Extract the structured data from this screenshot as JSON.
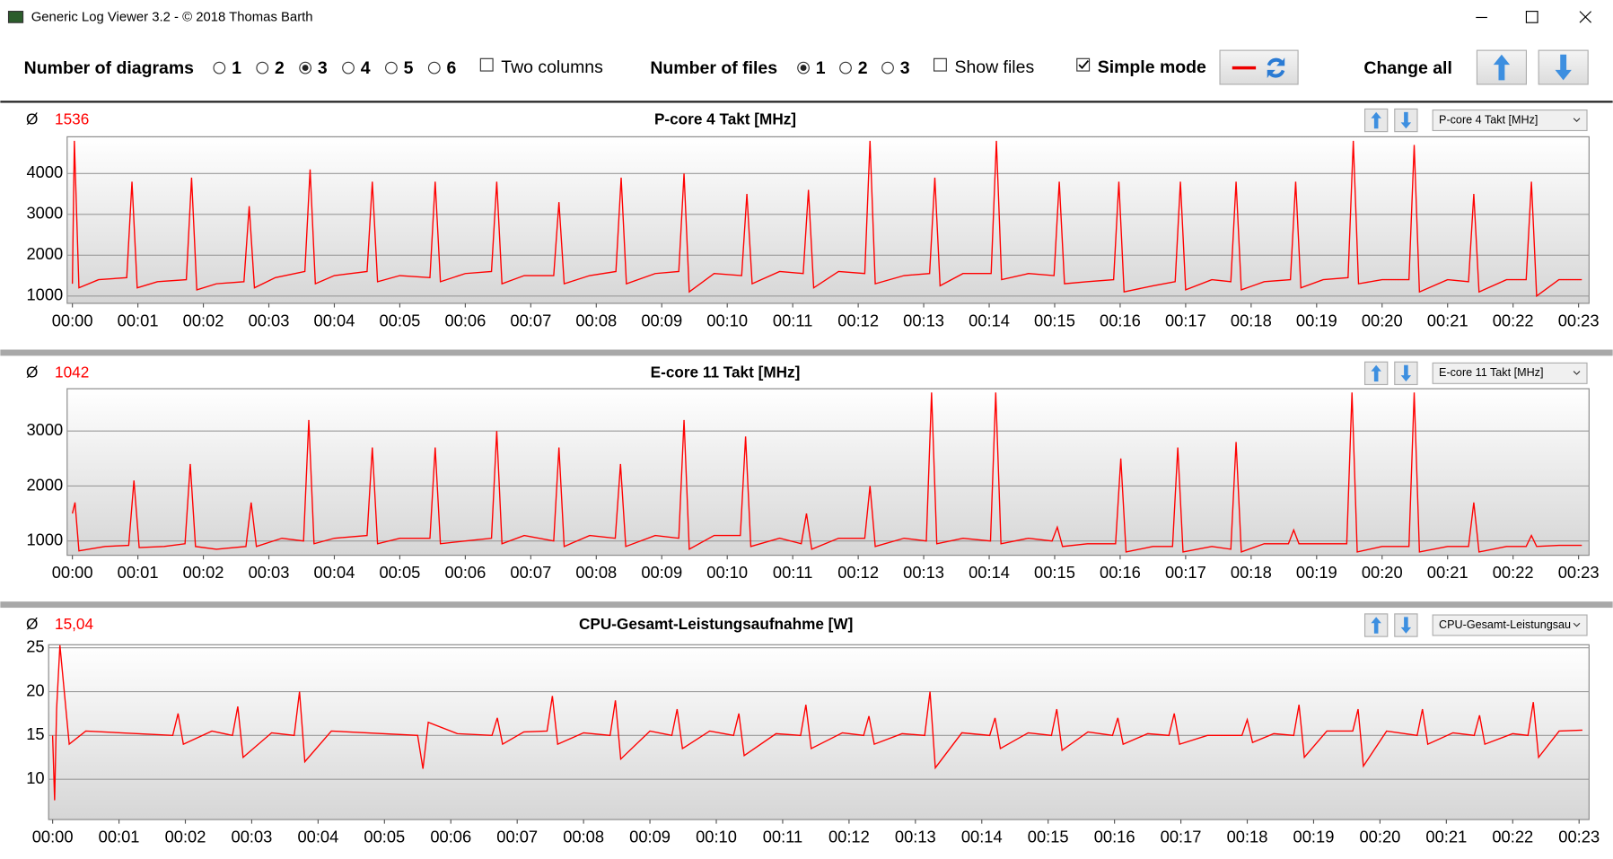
{
  "window": {
    "title": "Generic Log Viewer 3.2 - © 2018 Thomas Barth"
  },
  "toolbar": {
    "diagrams_label": "Number of diagrams",
    "diagram_options": [
      "1",
      "2",
      "3",
      "4",
      "5",
      "6"
    ],
    "diagrams_selected": 2,
    "two_columns": "Two columns",
    "two_columns_checked": false,
    "files_label": "Number of files",
    "file_options": [
      "1",
      "2",
      "3"
    ],
    "files_selected": 0,
    "show_files": "Show files",
    "show_files_checked": false,
    "simple_mode": "Simple mode",
    "simple_mode_checked": true,
    "change_all": "Change all"
  },
  "chart_data": [
    {
      "type": "line",
      "title": "P-core 4 Takt [MHz]",
      "average_symbol": "Ø",
      "average": 1536,
      "selector": "P-core 4 Takt [MHz]",
      "color": "#ff0000",
      "grid": true,
      "x": [
        0,
        0.03,
        0.1,
        0.4,
        0.83,
        0.91,
        0.99,
        1.3,
        1.74,
        1.82,
        1.9,
        2.2,
        2.62,
        2.7,
        2.78,
        3.1,
        3.55,
        3.63,
        3.71,
        4.0,
        4.5,
        4.58,
        4.66,
        5.0,
        5.46,
        5.54,
        5.62,
        6.0,
        6.4,
        6.48,
        6.56,
        6.9,
        7.35,
        7.43,
        7.51,
        7.9,
        8.3,
        8.38,
        8.46,
        8.9,
        9.26,
        9.34,
        9.42,
        9.8,
        10.22,
        10.3,
        10.38,
        10.8,
        11.16,
        11.24,
        11.32,
        11.7,
        12.1,
        12.18,
        12.26,
        12.7,
        13.09,
        13.17,
        13.25,
        13.6,
        14.03,
        14.11,
        14.19,
        14.6,
        14.99,
        15.07,
        15.15,
        15.5,
        15.9,
        15.98,
        16.06,
        16.5,
        16.84,
        16.92,
        17.0,
        17.4,
        17.69,
        17.77,
        17.85,
        18.2,
        18.6,
        18.68,
        18.76,
        19.1,
        19.48,
        19.56,
        19.64,
        20.0,
        20.41,
        20.49,
        20.57,
        21.0,
        21.32,
        21.4,
        21.48,
        21.9,
        22.2,
        22.28,
        22.36,
        22.7,
        23.05
      ],
      "values": [
        1300,
        4800,
        1200,
        1400,
        1450,
        3800,
        1200,
        1350,
        1400,
        3900,
        1150,
        1300,
        1350,
        3200,
        1200,
        1450,
        1600,
        4100,
        1300,
        1500,
        1600,
        3800,
        1350,
        1500,
        1450,
        3800,
        1350,
        1550,
        1600,
        3800,
        1300,
        1500,
        1500,
        3300,
        1300,
        1500,
        1600,
        3900,
        1300,
        1550,
        1600,
        4000,
        1100,
        1550,
        1500,
        3500,
        1300,
        1600,
        1550,
        3600,
        1200,
        1600,
        1550,
        4800,
        1300,
        1500,
        1550,
        3900,
        1250,
        1550,
        1550,
        4800,
        1400,
        1550,
        1500,
        3800,
        1300,
        1350,
        1400,
        3800,
        1100,
        1250,
        1350,
        3800,
        1150,
        1400,
        1350,
        3800,
        1150,
        1350,
        1400,
        3800,
        1200,
        1400,
        1450,
        4800,
        1300,
        1400,
        1400,
        4700,
        1100,
        1400,
        1350,
        3500,
        1100,
        1400,
        1400,
        3800,
        1000,
        1400,
        1400
      ],
      "xlim": [
        -0.08,
        23.16
      ],
      "ylim": [
        820,
        4900
      ],
      "yticks": [
        1000,
        2000,
        3000,
        4000
      ],
      "xticks": [
        {
          "value": 0,
          "label": "00:00"
        },
        {
          "value": 1,
          "label": "00:01"
        },
        {
          "value": 2,
          "label": "00:02"
        },
        {
          "value": 3,
          "label": "00:03"
        },
        {
          "value": 4,
          "label": "00:04"
        },
        {
          "value": 5,
          "label": "00:05"
        },
        {
          "value": 6,
          "label": "00:06"
        },
        {
          "value": 7,
          "label": "00:07"
        },
        {
          "value": 8,
          "label": "00:08"
        },
        {
          "value": 9,
          "label": "00:09"
        },
        {
          "value": 10,
          "label": "00:10"
        },
        {
          "value": 11,
          "label": "00:11"
        },
        {
          "value": 12,
          "label": "00:12"
        },
        {
          "value": 13,
          "label": "00:13"
        },
        {
          "value": 14,
          "label": "00:14"
        },
        {
          "value": 15,
          "label": "00:15"
        },
        {
          "value": 16,
          "label": "00:16"
        },
        {
          "value": 17,
          "label": "00:17"
        },
        {
          "value": 18,
          "label": "00:18"
        },
        {
          "value": 19,
          "label": "00:19"
        },
        {
          "value": 20,
          "label": "00:20"
        },
        {
          "value": 21,
          "label": "00:21"
        },
        {
          "value": 22,
          "label": "00:22"
        },
        {
          "value": 23,
          "label": "00:23"
        }
      ]
    },
    {
      "type": "line",
      "title": "E-core 11 Takt [MHz]",
      "average_symbol": "Ø",
      "average": 1042,
      "selector": "E-core 11 Takt [MHz]",
      "color": "#ff0000",
      "grid": true,
      "x": [
        0,
        0.04,
        0.1,
        0.5,
        0.86,
        0.94,
        1.02,
        1.4,
        1.72,
        1.8,
        1.88,
        2.2,
        2.65,
        2.73,
        2.81,
        3.2,
        3.53,
        3.61,
        3.69,
        4.0,
        4.5,
        4.58,
        4.66,
        5.0,
        5.46,
        5.54,
        5.62,
        6.0,
        6.4,
        6.48,
        6.56,
        6.9,
        7.35,
        7.43,
        7.51,
        7.9,
        8.29,
        8.37,
        8.45,
        8.9,
        9.26,
        9.34,
        9.42,
        9.8,
        10.2,
        10.28,
        10.36,
        10.8,
        11.13,
        11.21,
        11.29,
        11.7,
        12.1,
        12.18,
        12.26,
        12.7,
        13.04,
        13.12,
        13.2,
        13.6,
        14.02,
        14.1,
        14.18,
        14.6,
        14.96,
        15.04,
        15.12,
        15.5,
        15.93,
        16.01,
        16.09,
        16.5,
        16.8,
        16.88,
        16.96,
        17.4,
        17.69,
        17.77,
        17.85,
        18.2,
        18.57,
        18.65,
        18.73,
        19.1,
        19.46,
        19.54,
        19.62,
        20.0,
        20.41,
        20.49,
        20.57,
        21.0,
        21.32,
        21.4,
        21.48,
        21.9,
        22.2,
        22.28,
        22.36,
        22.7,
        23.05
      ],
      "values": [
        1500,
        1700,
        820,
        900,
        920,
        2100,
        880,
        900,
        950,
        2400,
        900,
        850,
        900,
        1700,
        900,
        1050,
        1000,
        3200,
        950,
        1050,
        1100,
        2700,
        950,
        1050,
        1050,
        2700,
        950,
        1000,
        1050,
        3000,
        950,
        1100,
        1000,
        2700,
        900,
        1100,
        1050,
        2400,
        900,
        1100,
        1050,
        3200,
        850,
        1100,
        1100,
        2900,
        900,
        1050,
        950,
        1500,
        850,
        1050,
        1050,
        2000,
        900,
        1050,
        1000,
        3700,
        950,
        1050,
        1000,
        3700,
        950,
        1050,
        1000,
        1250,
        900,
        950,
        950,
        2500,
        800,
        900,
        900,
        2700,
        800,
        900,
        850,
        2800,
        800,
        950,
        950,
        1200,
        950,
        950,
        950,
        3700,
        800,
        900,
        900,
        3700,
        800,
        900,
        900,
        1700,
        800,
        900,
        900,
        1100,
        900,
        920,
        920
      ],
      "xlim": [
        -0.08,
        23.16
      ],
      "ylim": [
        740,
        3770
      ],
      "yticks": [
        1000,
        2000,
        3000
      ],
      "xticks": [
        {
          "value": 0,
          "label": "00:00"
        },
        {
          "value": 1,
          "label": "00:01"
        },
        {
          "value": 2,
          "label": "00:02"
        },
        {
          "value": 3,
          "label": "00:03"
        },
        {
          "value": 4,
          "label": "00:04"
        },
        {
          "value": 5,
          "label": "00:05"
        },
        {
          "value": 6,
          "label": "00:06"
        },
        {
          "value": 7,
          "label": "00:07"
        },
        {
          "value": 8,
          "label": "00:08"
        },
        {
          "value": 9,
          "label": "00:09"
        },
        {
          "value": 10,
          "label": "00:10"
        },
        {
          "value": 11,
          "label": "00:11"
        },
        {
          "value": 12,
          "label": "00:12"
        },
        {
          "value": 13,
          "label": "00:13"
        },
        {
          "value": 14,
          "label": "00:14"
        },
        {
          "value": 15,
          "label": "00:15"
        },
        {
          "value": 16,
          "label": "00:16"
        },
        {
          "value": 17,
          "label": "00:17"
        },
        {
          "value": 18,
          "label": "00:18"
        },
        {
          "value": 19,
          "label": "00:19"
        },
        {
          "value": 20,
          "label": "00:20"
        },
        {
          "value": 21,
          "label": "00:21"
        },
        {
          "value": 22,
          "label": "00:22"
        },
        {
          "value": 23,
          "label": "00:23"
        }
      ]
    },
    {
      "type": "line",
      "title": "CPU-Gesamt-Leistungsaufnahme [W]",
      "average_symbol": "Ø",
      "average": {
        "value": 15.04,
        "label": "15,04"
      },
      "selector": "CPU-Gesamt-Leistungsau",
      "color": "#ff0000",
      "grid": true,
      "x": [
        0,
        0.03,
        0.06,
        0.11,
        0.25,
        0.5,
        1.81,
        1.89,
        1.97,
        2.4,
        2.71,
        2.79,
        2.87,
        3.3,
        3.64,
        3.72,
        3.8,
        4.2,
        5.5,
        5.58,
        5.66,
        6.1,
        6.62,
        6.7,
        6.78,
        7.1,
        7.45,
        7.53,
        7.61,
        8.0,
        8.4,
        8.48,
        8.56,
        9.0,
        9.33,
        9.41,
        9.49,
        9.9,
        10.26,
        10.34,
        10.42,
        10.9,
        11.27,
        11.35,
        11.43,
        11.9,
        12.22,
        12.3,
        12.38,
        12.8,
        13.14,
        13.22,
        13.3,
        13.7,
        14.12,
        14.2,
        14.28,
        14.7,
        15.05,
        15.13,
        15.21,
        15.6,
        15.97,
        16.05,
        16.13,
        16.5,
        16.82,
        16.9,
        16.98,
        17.4,
        17.92,
        18.0,
        18.08,
        18.4,
        18.7,
        18.78,
        18.86,
        19.2,
        19.59,
        19.67,
        19.75,
        20.1,
        20.56,
        20.64,
        20.72,
        21.1,
        21.42,
        21.5,
        21.58,
        22.0,
        22.23,
        22.31,
        22.39,
        22.7,
        23.05
      ],
      "values": [
        15,
        7.6,
        18,
        25.3,
        14,
        15.5,
        15,
        17.5,
        14,
        15.5,
        15,
        18.3,
        12.5,
        15.3,
        15,
        20,
        12,
        15.5,
        15,
        11.2,
        16.5,
        15.2,
        15,
        17,
        14,
        15.4,
        15.5,
        19.5,
        14,
        15.3,
        15,
        19,
        12.3,
        15.5,
        15,
        18,
        13.5,
        15.5,
        15,
        17.5,
        12.7,
        15.2,
        15,
        18.5,
        13.5,
        15.3,
        15,
        17.2,
        14,
        15.2,
        15,
        20,
        11.3,
        15.3,
        15,
        17,
        13.5,
        15.3,
        15,
        18,
        13.3,
        15.4,
        15,
        17,
        14,
        15.2,
        15,
        17.5,
        14,
        15,
        15,
        16.8,
        14.2,
        15.2,
        15,
        18.5,
        12.5,
        15.5,
        15.5,
        18,
        11.5,
        15.5,
        15,
        18,
        14,
        15.3,
        15,
        17.3,
        14,
        15.2,
        15,
        18.8,
        12.5,
        15.5,
        15.6
      ],
      "xlim": [
        -0.06,
        23.15
      ],
      "ylim": [
        5.4,
        25.35
      ],
      "yticks": [
        10,
        15,
        20,
        25
      ],
      "xticks": [
        {
          "value": 0,
          "label": "00:00"
        },
        {
          "value": 1,
          "label": "00:01"
        },
        {
          "value": 2,
          "label": "00:02"
        },
        {
          "value": 3,
          "label": "00:03"
        },
        {
          "value": 4,
          "label": "00:04"
        },
        {
          "value": 5,
          "label": "00:05"
        },
        {
          "value": 6,
          "label": "00:06"
        },
        {
          "value": 7,
          "label": "00:07"
        },
        {
          "value": 8,
          "label": "00:08"
        },
        {
          "value": 9,
          "label": "00:09"
        },
        {
          "value": 10,
          "label": "00:10"
        },
        {
          "value": 11,
          "label": "00:11"
        },
        {
          "value": 12,
          "label": "00:12"
        },
        {
          "value": 13,
          "label": "00:13"
        },
        {
          "value": 14,
          "label": "00:14"
        },
        {
          "value": 15,
          "label": "00:15"
        },
        {
          "value": 16,
          "label": "00:16"
        },
        {
          "value": 17,
          "label": "00:17"
        },
        {
          "value": 18,
          "label": "00:18"
        },
        {
          "value": 19,
          "label": "00:19"
        },
        {
          "value": 20,
          "label": "00:20"
        },
        {
          "value": 21,
          "label": "00:21"
        },
        {
          "value": 22,
          "label": "00:22"
        },
        {
          "value": 23,
          "label": "00:23"
        }
      ]
    }
  ]
}
